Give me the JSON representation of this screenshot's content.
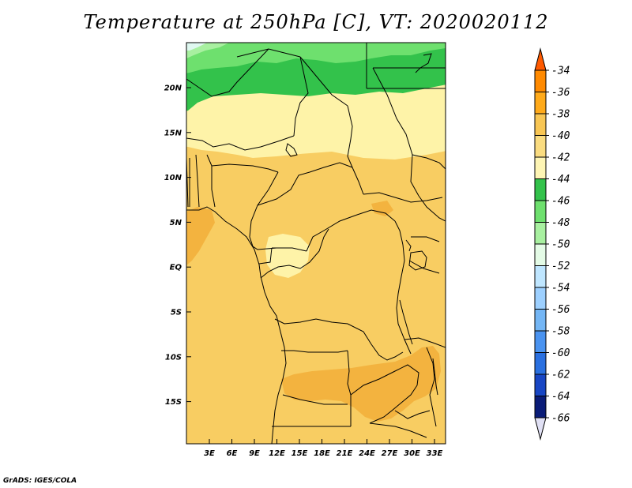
{
  "title": "Temperature at 250hPa [C], VT: 2020020112",
  "credit": "GrADS: IGES/COLA",
  "map": {
    "lon_range": [
      0,
      34
    ],
    "lat_range": [
      -20,
      25
    ],
    "lat_labels": [
      "20N",
      "15N",
      "10N",
      "5N",
      "EQ",
      "5S",
      "10S",
      "15S"
    ],
    "lon_labels": [
      "3E",
      "6E",
      "9E",
      "12E",
      "15E",
      "18E",
      "21E",
      "24E",
      "27E",
      "30E",
      "33E"
    ]
  },
  "colorbar": {
    "labels": [
      "-34",
      "-36",
      "-38",
      "-40",
      "-42",
      "-44",
      "-46",
      "-48",
      "-50",
      "-52",
      "-54",
      "-56",
      "-58",
      "-60",
      "-62",
      "-64",
      "-66"
    ],
    "colors": [
      "#ff5a00",
      "#ff8a00",
      "#ffaa1a",
      "#f8c654",
      "#fadc80",
      "#fef5b4",
      "#33c24b",
      "#6ee06e",
      "#a8f0a0",
      "#e4fbe6",
      "#bfe6ff",
      "#9dd0ff",
      "#74b6f5",
      "#4a93f0",
      "#2a70e0",
      "#1846c4",
      "#0a1c78",
      "#e0e0f4"
    ]
  },
  "field_colors": {
    "c38": "#f3b33f",
    "c40": "#f8cd62",
    "c42": "#fef3a8",
    "c44": "#33c24b",
    "c46": "#6ee06e",
    "c48": "#a8f0a0"
  }
}
